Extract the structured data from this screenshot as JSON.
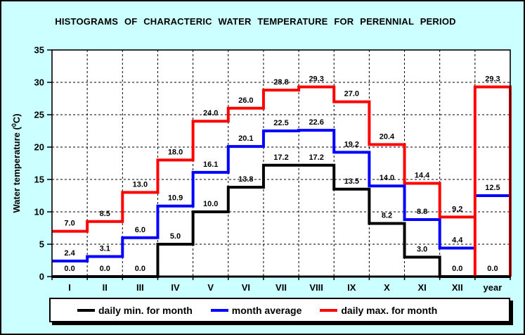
{
  "chart_data": {
    "type": "line",
    "subtype": "step-histogram",
    "title": "HISTOGRAMS OF CHARACTERIC WATER TEMPERATURE FOR PERENNIAL PERIOD",
    "ylabel": "Water temperature (0C)",
    "ylabel_parts": [
      "Water temperature (",
      "0",
      "C)"
    ],
    "xlabel": "",
    "ylim": [
      0,
      35
    ],
    "ytick_step": 5,
    "yticks": [
      0,
      5,
      10,
      15,
      20,
      25,
      30,
      35
    ],
    "categories": [
      "I",
      "II",
      "III",
      "IV",
      "V",
      "VI",
      "VII",
      "VIII",
      "IX",
      "X",
      "XI",
      "XII",
      "year"
    ],
    "grid": "dashed",
    "legend_position": "bottom",
    "series": [
      {
        "name": "daily min. for month",
        "color": "#000000",
        "year_style": "continue",
        "values": [
          0.0,
          0.0,
          0.0,
          5.0,
          10.0,
          13.8,
          17.2,
          17.2,
          13.5,
          8.2,
          3.0,
          0.0,
          0.0
        ]
      },
      {
        "name": "month average",
        "color": "#0000ff",
        "year_style": "detached",
        "values": [
          2.4,
          3.1,
          6.0,
          10.9,
          16.1,
          20.1,
          22.5,
          22.6,
          19.2,
          14.0,
          8.8,
          4.4,
          12.5
        ]
      },
      {
        "name": "daily max. for month",
        "color": "#ff0000",
        "year_style": "box",
        "values": [
          7.0,
          8.5,
          13.0,
          18.0,
          24.0,
          26.0,
          28.8,
          29.3,
          27.0,
          20.4,
          14.4,
          9.2,
          29.3
        ]
      }
    ]
  },
  "colors": {
    "background": "#ccffff",
    "plot_background": "#ffffff",
    "grid": "#000000",
    "data_label": "#000000"
  }
}
